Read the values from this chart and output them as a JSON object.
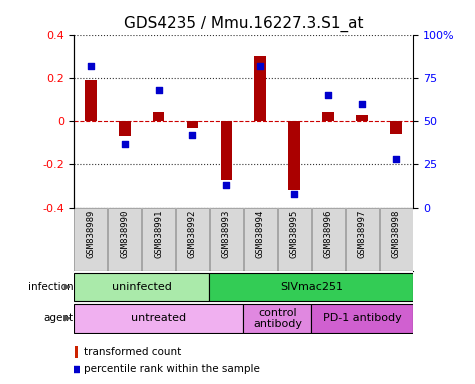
{
  "title": "GDS4235 / Mmu.16227.3.S1_at",
  "samples": [
    "GSM838989",
    "GSM838990",
    "GSM838991",
    "GSM838992",
    "GSM838993",
    "GSM838994",
    "GSM838995",
    "GSM838996",
    "GSM838997",
    "GSM838998"
  ],
  "transformed_count": [
    0.19,
    -0.07,
    0.04,
    -0.03,
    -0.27,
    0.3,
    -0.32,
    0.04,
    0.03,
    -0.06
  ],
  "percentile_rank": [
    0.82,
    0.37,
    0.68,
    0.42,
    0.13,
    0.82,
    0.08,
    0.65,
    0.6,
    0.28
  ],
  "ylim": [
    -0.4,
    0.4
  ],
  "y2lim": [
    0,
    100
  ],
  "yticks": [
    -0.4,
    -0.2,
    0.0,
    0.2,
    0.4
  ],
  "y2ticks": [
    0,
    25,
    50,
    75,
    100
  ],
  "bar_color": "#aa0000",
  "dot_color": "#0000cc",
  "infection_groups": [
    {
      "label": "uninfected",
      "start": 0,
      "end": 3,
      "color": "#aaeaaa"
    },
    {
      "label": "SIVmac251",
      "start": 4,
      "end": 9,
      "color": "#33cc55"
    }
  ],
  "agent_groups": [
    {
      "label": "untreated",
      "start": 0,
      "end": 4,
      "color": "#f0b0f0"
    },
    {
      "label": "control\nantibody",
      "start": 5,
      "end": 6,
      "color": "#e088e0"
    },
    {
      "label": "PD-1 antibody",
      "start": 7,
      "end": 9,
      "color": "#d060d0"
    }
  ],
  "legend_bar_color": "#cc2200",
  "legend_dot_color": "#0000cc",
  "legend_label_bar": "transformed count",
  "legend_label_dot": "percentile rank within the sample",
  "background_color": "#ffffff",
  "plot_bg_color": "#ffffff",
  "zero_line_color": "#cc0000",
  "title_fontsize": 11,
  "tick_fontsize": 8,
  "sample_fontsize": 6.5
}
